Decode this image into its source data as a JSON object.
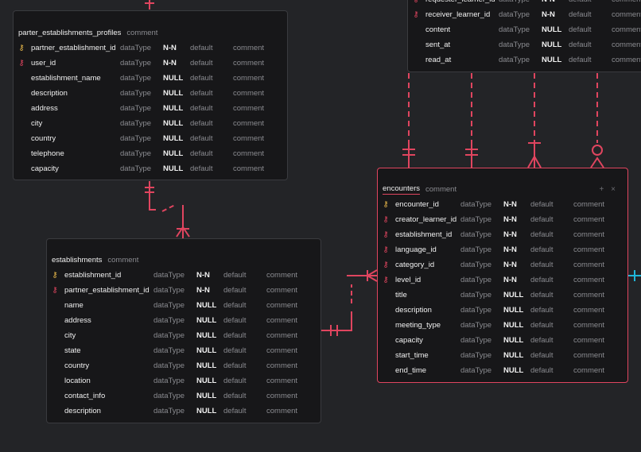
{
  "tables": {
    "profiles": {
      "name": "parter_establishments_profiles",
      "comment": "comment",
      "fields": [
        {
          "key": "pk",
          "name": "partner_establishment_id",
          "type": "dataType",
          "null": "N-N",
          "default": "default",
          "comment": "comment"
        },
        {
          "key": "fk",
          "name": "user_id",
          "type": "dataType",
          "null": "N-N",
          "default": "default",
          "comment": "comment"
        },
        {
          "key": "",
          "name": "establishment_name",
          "type": "dataType",
          "null": "NULL",
          "default": "default",
          "comment": "comment"
        },
        {
          "key": "",
          "name": "description",
          "type": "dataType",
          "null": "NULL",
          "default": "default",
          "comment": "comment"
        },
        {
          "key": "",
          "name": "address",
          "type": "dataType",
          "null": "NULL",
          "default": "default",
          "comment": "comment"
        },
        {
          "key": "",
          "name": "city",
          "type": "dataType",
          "null": "NULL",
          "default": "default",
          "comment": "comment"
        },
        {
          "key": "",
          "name": "country",
          "type": "dataType",
          "null": "NULL",
          "default": "default",
          "comment": "comment"
        },
        {
          "key": "",
          "name": "telephone",
          "type": "dataType",
          "null": "NULL",
          "default": "default",
          "comment": "comment"
        },
        {
          "key": "",
          "name": "capacity",
          "type": "dataType",
          "null": "NULL",
          "default": "default",
          "comment": "comment"
        }
      ]
    },
    "requests": {
      "fields": [
        {
          "key": "fk",
          "name": "requester_learner_id",
          "type": "dataType",
          "null": "N-N",
          "default": "default",
          "comment": "comment"
        },
        {
          "key": "fk",
          "name": "receiver_learner_id",
          "type": "dataType",
          "null": "N-N",
          "default": "default",
          "comment": "comment"
        },
        {
          "key": "",
          "name": "content",
          "type": "dataType",
          "null": "NULL",
          "default": "default",
          "comment": "comment"
        },
        {
          "key": "",
          "name": "sent_at",
          "type": "dataType",
          "null": "NULL",
          "default": "default",
          "comment": "comment"
        },
        {
          "key": "",
          "name": "read_at",
          "type": "dataType",
          "null": "NULL",
          "default": "default",
          "comment": "comment"
        }
      ]
    },
    "encounters": {
      "name": "encounters",
      "comment": "comment",
      "tools": "+ ×",
      "fields": [
        {
          "key": "pk",
          "name": "encounter_id",
          "type": "dataType",
          "null": "N-N",
          "default": "default",
          "comment": "comment"
        },
        {
          "key": "fk",
          "name": "creator_learner_id",
          "type": "dataType",
          "null": "N-N",
          "default": "default",
          "comment": "comment"
        },
        {
          "key": "fk",
          "name": "establishment_id",
          "type": "dataType",
          "null": "N-N",
          "default": "default",
          "comment": "comment"
        },
        {
          "key": "fk",
          "name": "language_id",
          "type": "dataType",
          "null": "N-N",
          "default": "default",
          "comment": "comment"
        },
        {
          "key": "fk",
          "name": "category_id",
          "type": "dataType",
          "null": "N-N",
          "default": "default",
          "comment": "comment"
        },
        {
          "key": "fk",
          "name": "level_id",
          "type": "dataType",
          "null": "N-N",
          "default": "default",
          "comment": "comment"
        },
        {
          "key": "",
          "name": "title",
          "type": "dataType",
          "null": "NULL",
          "default": "default",
          "comment": "comment"
        },
        {
          "key": "",
          "name": "description",
          "type": "dataType",
          "null": "NULL",
          "default": "default",
          "comment": "comment"
        },
        {
          "key": "",
          "name": "meeting_type",
          "type": "dataType",
          "null": "NULL",
          "default": "default",
          "comment": "comment"
        },
        {
          "key": "",
          "name": "capacity",
          "type": "dataType",
          "null": "NULL",
          "default": "default",
          "comment": "comment"
        },
        {
          "key": "",
          "name": "start_time",
          "type": "dataType",
          "null": "NULL",
          "default": "default",
          "comment": "comment"
        },
        {
          "key": "",
          "name": "end_time",
          "type": "dataType",
          "null": "NULL",
          "default": "default",
          "comment": "comment"
        }
      ]
    },
    "establishments": {
      "name": "establishments",
      "comment": "comment",
      "fields": [
        {
          "key": "pk",
          "name": "establishment_id",
          "type": "dataType",
          "null": "N-N",
          "default": "default",
          "comment": "comment"
        },
        {
          "key": "fk",
          "name": "partner_establishment_id",
          "type": "dataType",
          "null": "N-N",
          "default": "default",
          "comment": "comment"
        },
        {
          "key": "",
          "name": "name",
          "type": "dataType",
          "null": "NULL",
          "default": "default",
          "comment": "comment"
        },
        {
          "key": "",
          "name": "address",
          "type": "dataType",
          "null": "NULL",
          "default": "default",
          "comment": "comment"
        },
        {
          "key": "",
          "name": "city",
          "type": "dataType",
          "null": "NULL",
          "default": "default",
          "comment": "comment"
        },
        {
          "key": "",
          "name": "state",
          "type": "dataType",
          "null": "NULL",
          "default": "default",
          "comment": "comment"
        },
        {
          "key": "",
          "name": "country",
          "type": "dataType",
          "null": "NULL",
          "default": "default",
          "comment": "comment"
        },
        {
          "key": "",
          "name": "location",
          "type": "dataType",
          "null": "NULL",
          "default": "default",
          "comment": "comment"
        },
        {
          "key": "",
          "name": "contact_info",
          "type": "dataType",
          "null": "NULL",
          "default": "default",
          "comment": "comment"
        },
        {
          "key": "",
          "name": "description",
          "type": "dataType",
          "null": "NULL",
          "default": "default",
          "comment": "comment"
        }
      ]
    }
  },
  "icons": {
    "pk": "key-icon",
    "fk": "foreign-key-icon"
  },
  "colors": {
    "canvas": "#232427",
    "table_bg": "#171719",
    "relation": "#e0455f",
    "primary_key": "#e8b84a",
    "foreign_key": "#e0455f",
    "offscreen_link": "#1fb6d8"
  }
}
